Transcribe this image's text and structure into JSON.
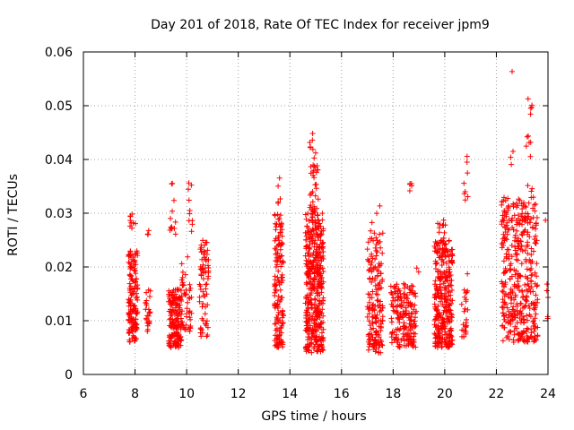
{
  "chart_data": {
    "type": "scatter",
    "title": "Day 201 of 2018, Rate Of TEC Index for receiver jpm9",
    "xlabel": "GPS time / hours",
    "ylabel": "ROTI / TECUs",
    "xlim": [
      6,
      24
    ],
    "ylim": [
      0,
      0.06
    ],
    "xticks": [
      6,
      8,
      10,
      12,
      14,
      16,
      18,
      20,
      22,
      24
    ],
    "xtick_labels": [
      "6",
      "8",
      "10",
      "12",
      "14",
      "16",
      "18",
      "20",
      "22",
      "24"
    ],
    "yticks": [
      0,
      0.01,
      0.02,
      0.03,
      0.04,
      0.05,
      0.06
    ],
    "ytick_labels": [
      "0",
      "0.01",
      "0.02",
      "0.03",
      "0.04",
      "0.05",
      "0.06"
    ],
    "grid": true,
    "marker": "plus",
    "color": "#ff0000",
    "clusters": [
      {
        "x_range": [
          7.75,
          8.1
        ],
        "y_range": [
          0.006,
          0.023
        ],
        "count": 150
      },
      {
        "x_range": [
          7.8,
          8.05
        ],
        "y_range": [
          0.027,
          0.03
        ],
        "count": 10
      },
      {
        "x_range": [
          8.4,
          8.6
        ],
        "y_range": [
          0.008,
          0.016
        ],
        "count": 25
      },
      {
        "x_range": [
          8.45,
          8.6
        ],
        "y_range": [
          0.026,
          0.027
        ],
        "count": 3
      },
      {
        "x_range": [
          9.3,
          9.8
        ],
        "y_range": [
          0.005,
          0.016
        ],
        "count": 160
      },
      {
        "x_range": [
          9.35,
          9.6
        ],
        "y_range": [
          0.026,
          0.036
        ],
        "count": 12
      },
      {
        "x_range": [
          9.8,
          10.2
        ],
        "y_range": [
          0.008,
          0.022
        ],
        "count": 45
      },
      {
        "x_range": [
          10.0,
          10.25
        ],
        "y_range": [
          0.026,
          0.036
        ],
        "count": 10
      },
      {
        "x_range": [
          10.5,
          10.85
        ],
        "y_range": [
          0.007,
          0.025
        ],
        "count": 70
      },
      {
        "x_range": [
          13.4,
          13.75
        ],
        "y_range": [
          0.005,
          0.03
        ],
        "count": 150
      },
      {
        "x_range": [
          13.5,
          13.65
        ],
        "y_range": [
          0.031,
          0.038
        ],
        "count": 5
      },
      {
        "x_range": [
          14.6,
          15.3
        ],
        "y_range": [
          0.004,
          0.03
        ],
        "count": 420
      },
      {
        "x_range": [
          14.75,
          15.1
        ],
        "y_range": [
          0.03,
          0.045
        ],
        "count": 40
      },
      {
        "x_range": [
          17.0,
          17.6
        ],
        "y_range": [
          0.004,
          0.025
        ],
        "count": 160
      },
      {
        "x_range": [
          17.1,
          17.6
        ],
        "y_range": [
          0.025,
          0.032
        ],
        "count": 10
      },
      {
        "x_range": [
          17.9,
          18.9
        ],
        "y_range": [
          0.005,
          0.017
        ],
        "count": 180
      },
      {
        "x_range": [
          18.6,
          18.75
        ],
        "y_range": [
          0.034,
          0.0355
        ],
        "count": 5
      },
      {
        "x_range": [
          18.8,
          19.0
        ],
        "y_range": [
          0.019,
          0.02
        ],
        "count": 2
      },
      {
        "x_range": [
          19.6,
          20.3
        ],
        "y_range": [
          0.005,
          0.025
        ],
        "count": 300
      },
      {
        "x_range": [
          19.7,
          20.1
        ],
        "y_range": [
          0.025,
          0.03
        ],
        "count": 10
      },
      {
        "x_range": [
          20.65,
          20.9
        ],
        "y_range": [
          0.007,
          0.016
        ],
        "count": 25
      },
      {
        "x_range": [
          20.7,
          20.9
        ],
        "y_range": [
          0.032,
          0.041
        ],
        "count": 8
      },
      {
        "x_range": [
          20.85,
          20.9
        ],
        "y_range": [
          0.018,
          0.019
        ],
        "count": 1
      },
      {
        "x_range": [
          22.2,
          23.6
        ],
        "y_range": [
          0.006,
          0.033
        ],
        "count": 400
      },
      {
        "x_range": [
          22.5,
          22.65
        ],
        "y_range": [
          0.036,
          0.042
        ],
        "count": 3
      },
      {
        "x_range": [
          23.1,
          23.4
        ],
        "y_range": [
          0.034,
          0.052
        ],
        "count": 14
      },
      {
        "x_range": [
          22.55,
          22.65
        ],
        "y_range": [
          0.056,
          0.057
        ],
        "count": 1
      },
      {
        "x_range": [
          23.9,
          24.0
        ],
        "y_range": [
          0.01,
          0.03
        ],
        "count": 6
      }
    ]
  }
}
